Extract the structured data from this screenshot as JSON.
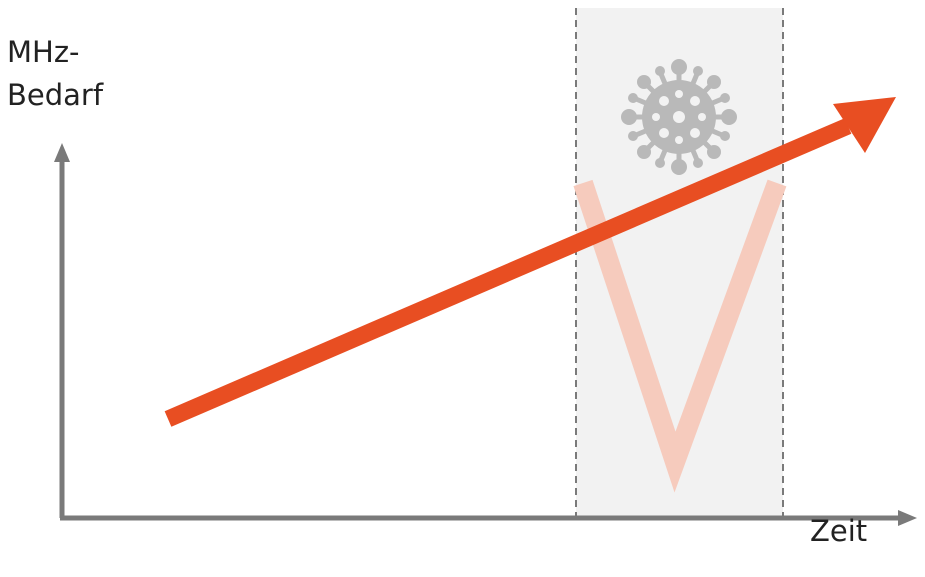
{
  "axes": {
    "y_label_line1": "MHz-",
    "y_label_line2": "Bedarf",
    "x_label": "Zeit"
  },
  "colors": {
    "axis": "#7a7a7a",
    "trend_arrow": "#e84e22",
    "dip": "#f6cbbd",
    "pandemic_band": "#f2f2f2",
    "band_border": "#7a7a7a",
    "virus_icon": "#b9b9b9"
  },
  "icons": {
    "pandemic": "virus-icon"
  }
}
